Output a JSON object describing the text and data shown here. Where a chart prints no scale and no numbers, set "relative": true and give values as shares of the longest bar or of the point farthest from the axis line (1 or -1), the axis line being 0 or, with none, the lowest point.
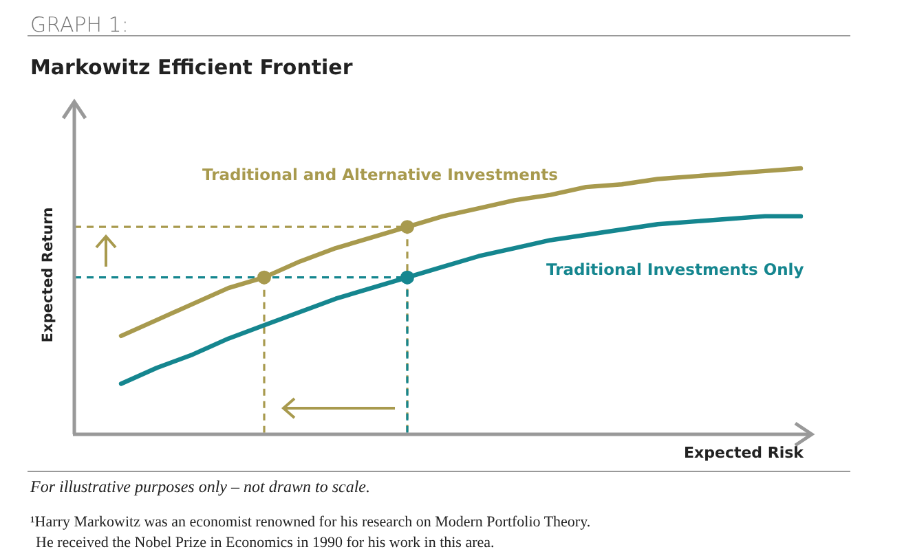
{
  "chart_data": {
    "type": "line",
    "title": "Markowitz Efficient Frontier",
    "xlabel": "Expected Risk",
    "ylabel": "Expected Return",
    "relative": true,
    "legend": false,
    "grid": false,
    "categories": [
      null,
      null,
      null,
      null,
      null,
      null,
      null,
      null,
      null,
      null,
      null,
      null,
      null,
      null,
      null,
      null,
      null,
      null,
      null,
      null
    ],
    "series": [
      {
        "name": "Traditional and Alternative Investments",
        "color": "#a89a4e",
        "marker": "none",
        "values": [
          0.37,
          0.43,
          0.49,
          0.55,
          0.59,
          0.65,
          0.7,
          0.74,
          0.78,
          0.82,
          0.85,
          0.88,
          0.9,
          0.93,
          0.94,
          0.96,
          0.97,
          0.98,
          0.99,
          1
        ]
      },
      {
        "name": "Traditional Investments Only",
        "color": "#15868f",
        "marker": "none",
        "values": [
          0.19,
          0.25,
          0.3,
          0.36,
          0.41,
          0.46,
          0.51,
          0.55,
          0.59,
          0.63,
          0.67,
          0.7,
          0.73,
          0.75,
          0.77,
          0.79,
          0.8,
          0.81,
          0.82,
          0.82
        ]
      }
    ],
    "ref_lines": [
      {
        "axis": "y",
        "value": 0.78,
        "color": "#a89a4e",
        "line_style": "dashed"
      },
      {
        "axis": "y",
        "value": 0.59,
        "color": "#15868f",
        "line_style": "dashed"
      }
    ],
    "annotations": [
      "GRAPH 1:",
      "For illustrative purposes only – not drawn to scale.",
      "¹Harry Markowitz was an economist renowned for his research on Modern Portfolio Theory.",
      "He received the Nobel Prize in Economics in 1990 for his work in this area."
    ]
  }
}
